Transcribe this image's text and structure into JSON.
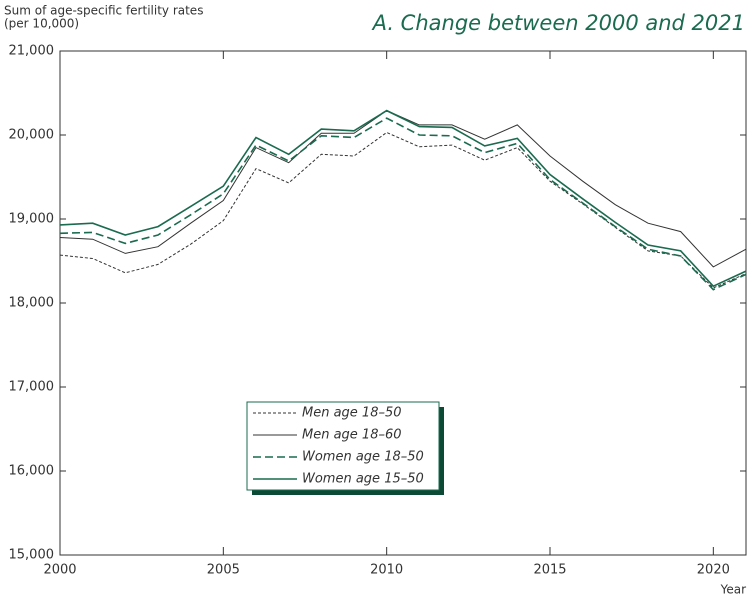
{
  "chart_data": {
    "type": "line",
    "title": "A. Change between 2000 and 2021",
    "ylabel": [
      "Sum of age-specific fertility rates",
      "(per 10,000)"
    ],
    "xlabel": "Year",
    "x": [
      2000,
      2001,
      2002,
      2003,
      2004,
      2005,
      2006,
      2007,
      2008,
      2009,
      2010,
      2011,
      2012,
      2013,
      2014,
      2015,
      2016,
      2017,
      2018,
      2019,
      2020,
      2021
    ],
    "series": [
      {
        "name": "Men age 18–50",
        "color": "#333333",
        "dash": "dotted",
        "values": [
          18570,
          18530,
          18360,
          18460,
          18700,
          18980,
          19600,
          19430,
          19770,
          19750,
          20030,
          19860,
          19880,
          19700,
          19850,
          19450,
          19180,
          18900,
          18620,
          18560,
          18180,
          18350
        ]
      },
      {
        "name": "Men age 18–60",
        "color": "#333333",
        "dash": "solid",
        "values": [
          18780,
          18760,
          18590,
          18670,
          18950,
          19220,
          19850,
          19670,
          20020,
          20020,
          20290,
          20120,
          20120,
          19950,
          20120,
          19750,
          19450,
          19170,
          18950,
          18850,
          18430,
          18640
        ]
      },
      {
        "name": "Women age 18–50",
        "color": "#1a6b4f",
        "dash": "dashed",
        "values": [
          18830,
          18840,
          18710,
          18810,
          19050,
          19300,
          19880,
          19690,
          19990,
          19970,
          20200,
          20000,
          19990,
          19790,
          19900,
          19470,
          19190,
          18910,
          18640,
          18560,
          18160,
          18340
        ]
      },
      {
        "name": "Women age 15–50",
        "color": "#1a6b4f",
        "dash": "solid",
        "values": [
          18930,
          18950,
          18810,
          18910,
          19150,
          19390,
          19970,
          19770,
          20070,
          20050,
          20290,
          20100,
          20090,
          19870,
          19960,
          19530,
          19240,
          18960,
          18690,
          18620,
          18200,
          18380
        ]
      }
    ],
    "xlim": [
      2000,
      2021
    ],
    "xticks": [
      2000,
      2005,
      2010,
      2015,
      2020
    ],
    "ylim": [
      15000,
      21000
    ],
    "yticks": [
      {
        "value": 15000,
        "label": "15,000"
      },
      {
        "value": 16000,
        "label": "16,000"
      },
      {
        "value": 17000,
        "label": "17,000"
      },
      {
        "value": 18000,
        "label": "18,000"
      },
      {
        "value": 19000,
        "label": "19,000"
      },
      {
        "value": 20000,
        "label": "20,000"
      },
      {
        "value": 21000,
        "label": "21,000"
      }
    ],
    "legend": "lower center",
    "title_color": "#1a6b4f"
  }
}
